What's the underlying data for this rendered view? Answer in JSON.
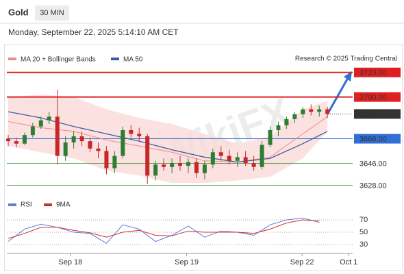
{
  "chart_data": [
    {
      "type": "candlestick",
      "title": "Gold",
      "timeframe": "30 MIN",
      "timestamp": "Monday, September 22, 2025 5:14:10 AM CET",
      "source": "Research © 2025 Trading Central",
      "watermark": "WikiFX",
      "up_color": "#2e7d32",
      "down_color": "#c62828",
      "xlim": [
        0,
        43
      ],
      "ylim": [
        3620,
        3726
      ],
      "open": [
        3666,
        3664,
        3662,
        3669,
        3676,
        3681,
        3684,
        3652,
        3663,
        3668,
        3664,
        3658,
        3656,
        3642,
        3652,
        3673,
        3670,
        3668,
        3636,
        3645,
        3643,
        3646,
        3644,
        3647,
        3638,
        3645,
        3655,
        3652,
        3648,
        3651,
        3646,
        3643,
        3661,
        3673,
        3677,
        3682,
        3686,
        3690,
        3688,
        3690
      ],
      "high": [
        3669,
        3667,
        3671,
        3679,
        3684,
        3688,
        3706,
        3668,
        3672,
        3672,
        3667,
        3663,
        3660,
        3656,
        3676,
        3677,
        3675,
        3670,
        3648,
        3650,
        3650,
        3652,
        3650,
        3650,
        3648,
        3658,
        3660,
        3657,
        3655,
        3656,
        3652,
        3664,
        3676,
        3680,
        3684,
        3688,
        3692,
        3694,
        3693,
        3692
      ],
      "low": [
        3660,
        3659,
        3661,
        3667,
        3674,
        3678,
        3645,
        3648,
        3658,
        3660,
        3655,
        3650,
        3637,
        3638,
        3650,
        3667,
        3664,
        3629,
        3632,
        3640,
        3638,
        3640,
        3638,
        3634,
        3633,
        3642,
        3648,
        3645,
        3643,
        3644,
        3640,
        3641,
        3659,
        3668,
        3674,
        3679,
        3683,
        3685,
        3684,
        3683
      ],
      "close": [
        3664,
        3662,
        3669,
        3676,
        3681,
        3684,
        3652,
        3663,
        3668,
        3664,
        3658,
        3656,
        3642,
        3652,
        3673,
        3670,
        3668,
        3636,
        3645,
        3643,
        3646,
        3644,
        3647,
        3638,
        3645,
        3655,
        3652,
        3648,
        3651,
        3646,
        3643,
        3661,
        3673,
        3677,
        3682,
        3686,
        3690,
        3688,
        3690,
        3686.18
      ],
      "last_price": 3686.18,
      "bollinger": {
        "color": "#fbdada",
        "x": [
          0,
          4,
          8,
          12,
          16,
          20,
          24,
          28,
          32,
          36,
          39
        ],
        "upper": [
          3700,
          3702,
          3700,
          3690,
          3683,
          3678,
          3670,
          3662,
          3668,
          3690,
          3697
        ],
        "lower": [
          3660,
          3655,
          3650,
          3640,
          3636,
          3630,
          3630,
          3632,
          3635,
          3650,
          3672
        ]
      },
      "series": [
        {
          "name": "MA 20 + Bollinger Bands",
          "color": "#ec8a8a",
          "x": [
            0,
            4,
            8,
            12,
            16,
            20,
            24,
            28,
            32,
            36,
            39
          ],
          "values": [
            3680,
            3675,
            3672,
            3665,
            3660,
            3655,
            3648,
            3647,
            3651,
            3670,
            3684
          ]
        },
        {
          "name": "MA 50",
          "color": "#3a5c9c",
          "x": [
            0,
            4,
            8,
            12,
            16,
            20,
            24,
            28,
            32,
            36,
            39
          ],
          "values": [
            3688,
            3683,
            3676,
            3670,
            3664,
            3657,
            3651,
            3647,
            3650,
            3662,
            3672
          ]
        }
      ],
      "levels": [
        {
          "value": 3720,
          "label": "3720.00",
          "color": "#e02020",
          "box": true,
          "width": 2
        },
        {
          "value": 3700,
          "label": "3700.00",
          "color": "#e02020",
          "box": true,
          "width": 2
        },
        {
          "value": 3666,
          "label": "3666.00",
          "color": "#2f6fd6",
          "box": true,
          "width": 1
        },
        {
          "value": 3646,
          "label": "3646.00",
          "color": "#2e8b2e",
          "box": false,
          "width": 0.7
        },
        {
          "value": 3628,
          "label": "3628.00",
          "color": "#2e8b2e",
          "box": false,
          "width": 0.7
        }
      ]
    },
    {
      "type": "line",
      "xlim": [
        0,
        43
      ],
      "ylim": [
        20,
        80
      ],
      "yticks": [
        70,
        50,
        30
      ],
      "xticks": [
        {
          "value": 7.6,
          "label": "Sep 18"
        },
        {
          "value": 21.8,
          "label": "Sep 19"
        },
        {
          "value": 35.9,
          "label": "Sep 22"
        },
        {
          "value": 41.6,
          "label": "Oct 1"
        }
      ],
      "x": [
        0,
        2,
        4,
        6,
        8,
        10,
        12,
        14,
        16,
        18,
        20,
        22,
        24,
        26,
        28,
        30,
        32,
        34,
        36,
        38
      ],
      "series": [
        {
          "name": "RSI",
          "color": "#5b7fd6",
          "values": [
            35,
            55,
            63,
            58,
            50,
            48,
            32,
            62,
            55,
            35,
            45,
            60,
            42,
            52,
            50,
            45,
            62,
            70,
            73,
            66
          ]
        },
        {
          "name": "9MA",
          "color": "#d32f2f",
          "values": [
            40,
            48,
            58,
            58,
            53,
            49,
            42,
            50,
            53,
            45,
            44,
            52,
            50,
            50,
            50,
            48,
            55,
            65,
            70,
            68
          ]
        }
      ]
    }
  ]
}
